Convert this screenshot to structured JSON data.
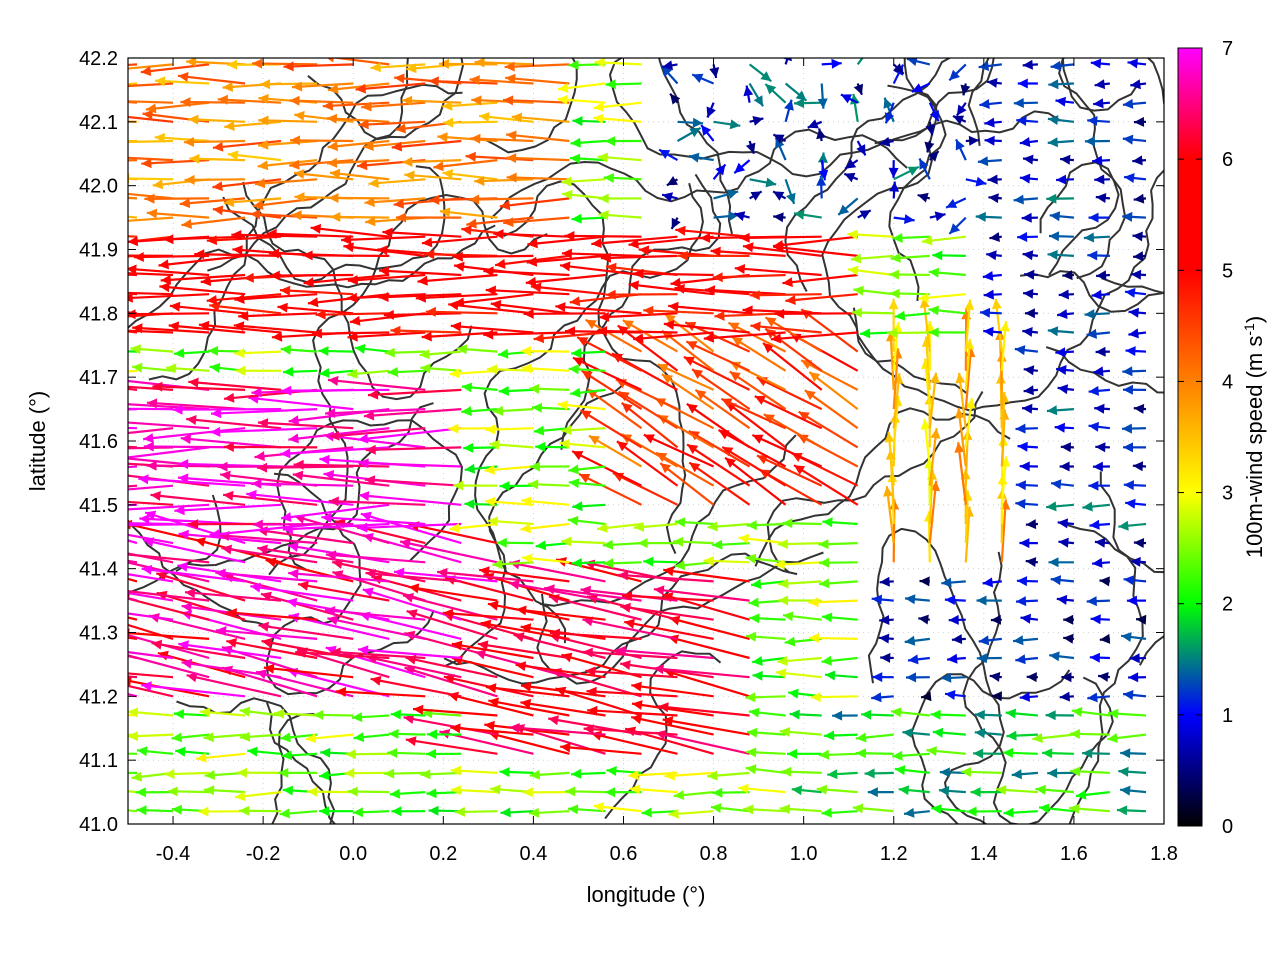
{
  "chart_data": {
    "type": "vector-field",
    "xlabel": "longitude (°)",
    "ylabel": "latitude (°)",
    "xlim": [
      -0.5,
      1.8
    ],
    "ylim": [
      41.0,
      42.2
    ],
    "x_ticks": [
      -0.4,
      -0.2,
      0.0,
      0.2,
      0.4,
      0.6,
      0.8,
      1.0,
      1.2,
      1.4,
      1.6,
      1.8
    ],
    "x_tick_labels": [
      "-0.4",
      "-0.2",
      "0.0",
      "0.2",
      "0.4",
      "0.6",
      "0.8",
      "1.0",
      "1.2",
      "1.4",
      "1.6",
      "1.8"
    ],
    "y_ticks": [
      41.0,
      41.1,
      41.2,
      41.3,
      41.4,
      41.5,
      41.6,
      41.7,
      41.8,
      41.9,
      42.0,
      42.1,
      42.2
    ],
    "y_tick_labels": [
      "41.0",
      "41.1",
      "41.2",
      "41.3",
      "41.4",
      "41.5",
      "41.6",
      "41.7",
      "41.8",
      "41.9",
      "42.0",
      "42.1",
      "42.2"
    ],
    "grid": true,
    "colorbar": {
      "label_main": "100m-wind speed (m s",
      "label_sup": "-1",
      "label_end": ")",
      "range": [
        0,
        7
      ],
      "ticks": [
        0,
        1,
        2,
        3,
        4,
        5,
        6,
        7
      ],
      "tick_labels": [
        "0",
        "1",
        "2",
        "3",
        "4",
        "5",
        "6",
        "7"
      ],
      "colors": [
        "#000000",
        "#0000ff",
        "#00ff00",
        "#ffff00",
        "#ff8000",
        "#ff0000",
        "#ff00ff"
      ]
    },
    "wind_field_regions": [
      {
        "lon": [
          -0.5,
          0.3
        ],
        "lat": [
          41.45,
          41.7
        ],
        "speed_ms": 6.8,
        "direction": "from east"
      },
      {
        "lon": [
          -0.5,
          0.35
        ],
        "lat": [
          41.2,
          41.45
        ],
        "speed_ms": 6.5,
        "direction": "from east-southeast"
      },
      {
        "lon": [
          -0.5,
          1.2
        ],
        "lat": [
          41.75,
          41.95
        ],
        "speed_ms": 5.2,
        "direction": "from east"
      },
      {
        "lon": [
          0.3,
          0.9
        ],
        "lat": [
          41.1,
          41.4
        ],
        "speed_ms": 6.0,
        "direction": "from east-southeast"
      },
      {
        "lon": [
          0.6,
          1.2
        ],
        "lat": [
          41.5,
          41.75
        ],
        "speed_ms": 4.5,
        "direction": "from southeast"
      },
      {
        "lon": [
          1.2,
          1.5
        ],
        "lat": [
          41.4,
          41.75
        ],
        "speed_ms": 3.5,
        "direction": "from south"
      },
      {
        "lon": [
          1.0,
          1.8
        ],
        "lat": [
          41.0,
          41.2
        ],
        "speed_ms": 2.0,
        "direction": "from east"
      },
      {
        "lon": [
          1.2,
          1.8
        ],
        "lat": [
          41.2,
          41.4
        ],
        "speed_ms": 0.8,
        "direction": "from east"
      },
      {
        "lon": [
          1.4,
          1.8
        ],
        "lat": [
          41.4,
          42.2
        ],
        "speed_ms": 1.0,
        "direction": "from east"
      },
      {
        "lon": [
          0.7,
          1.4
        ],
        "lat": [
          41.95,
          42.2
        ],
        "speed_ms": 1.0,
        "direction": "variable"
      },
      {
        "lon": [
          -0.5,
          0.5
        ],
        "lat": [
          41.95,
          42.2
        ],
        "speed_ms": 4.0,
        "direction": "from east"
      }
    ]
  }
}
